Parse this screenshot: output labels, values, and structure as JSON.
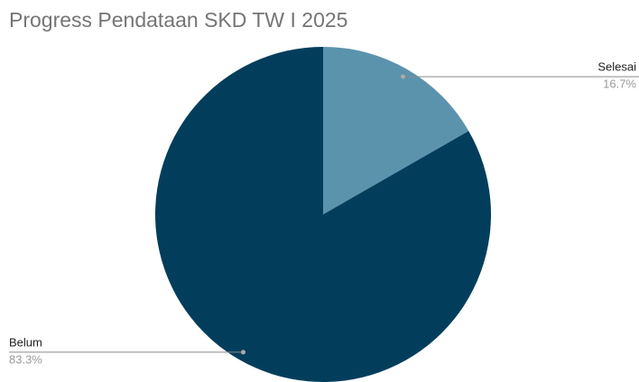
{
  "chart_data": {
    "type": "pie",
    "title": "Progress Pendataan SKD TW I 2025",
    "categories": [
      "Selesai",
      "Belum"
    ],
    "values": [
      16.7,
      83.3
    ],
    "value_labels": [
      "16.7%",
      "83.3%"
    ],
    "colors": [
      "#5b93ad",
      "#023e5c"
    ]
  }
}
